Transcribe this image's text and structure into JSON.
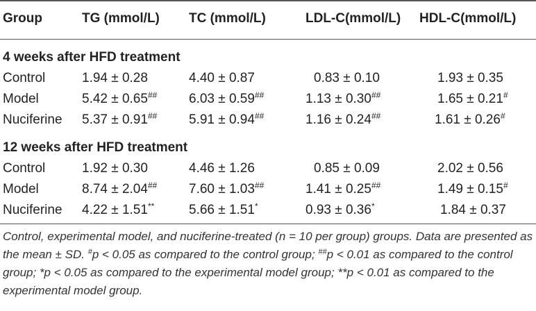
{
  "headers": [
    "Group",
    "TG (mmol/L)",
    "TC (mmol/L)",
    "LDL-C(mmol/L)",
    "HDL-C(mmol/L)"
  ],
  "sections": [
    {
      "title": "4 weeks after HFD treatment",
      "rows": [
        {
          "group": "Control",
          "tg": "1.94 ± 0.28",
          "tg_sup": "",
          "tc": "4.40 ± 0.87",
          "tc_sup": "",
          "ldl": "0.83 ± 0.10",
          "ldl_sup": "",
          "hdl": "1.93 ± 0.35",
          "hdl_sup": ""
        },
        {
          "group": "Model",
          "tg": "5.42 ± 0.65",
          "tg_sup": "##",
          "tc": "6.03 ± 0.59",
          "tc_sup": "##",
          "ldl": "1.13 ± 0.30",
          "ldl_sup": "##",
          "hdl": "1.65 ± 0.21",
          "hdl_sup": "#"
        },
        {
          "group": "Nuciferine",
          "tg": "5.37 ± 0.91",
          "tg_sup": "##",
          "tc": "5.91 ± 0.94",
          "tc_sup": "##",
          "ldl": "1.16 ± 0.24",
          "ldl_sup": "##",
          "hdl": "1.61 ± 0.26",
          "hdl_sup": "#"
        }
      ]
    },
    {
      "title": "12 weeks after HFD treatment",
      "rows": [
        {
          "group": "Control",
          "tg": "1.92 ± 0.30",
          "tg_sup": "",
          "tc": "4.46 ± 1.26",
          "tc_sup": "",
          "ldl": "0.85 ± 0.09",
          "ldl_sup": "",
          "hdl": "2.02 ± 0.56",
          "hdl_sup": ""
        },
        {
          "group": "Model",
          "tg": "8.74 ± 2.04",
          "tg_sup": "##",
          "tc": "7.60 ± 1.03",
          "tc_sup": "##",
          "ldl": "1.41 ± 0.25",
          "ldl_sup": "##",
          "hdl": "1.49 ± 0.15",
          "hdl_sup": "#"
        },
        {
          "group": "Nuciferine",
          "tg": "4.22 ± 1.51",
          "tg_sup": "**",
          "tc": "5.66 ± 1.51",
          "tc_sup": "*",
          "ldl": "0.93 ± 0.36",
          "ldl_sup": "*",
          "hdl": "1.84 ± 0.37",
          "hdl_sup": ""
        }
      ]
    }
  ],
  "footnote": {
    "t1": "Control, experimental model, and nuciferine-treated (n = 10 per group) groups. Data are presented as the mean ± SD. ",
    "s1": "#",
    "t2": "p < 0.05 as compared to the control group; ",
    "s2": "##",
    "t3": "p < 0.01 as compared to the control group; *p < 0.05 as compared to the experimental model group; **p < 0.01 as compared to the experimental model group."
  }
}
